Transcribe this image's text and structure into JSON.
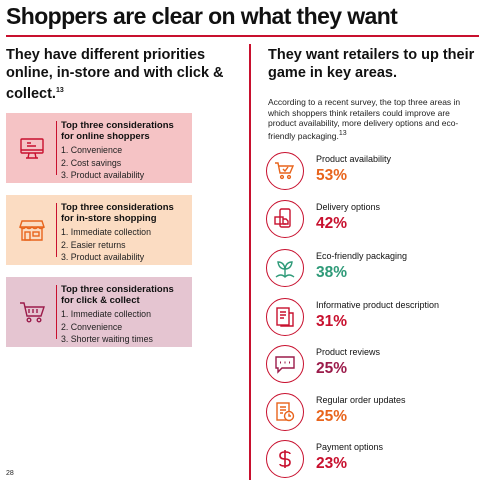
{
  "page": {
    "title": "Shoppers are clear on what they want",
    "page_number": "28"
  },
  "left": {
    "heading": "They have different priorities online, in-store and with click & collect.",
    "heading_ref": "13",
    "boxes": [
      {
        "icon": "monitor-icon",
        "title": "Top three considerations for online shoppers",
        "items": [
          "1. Convenience",
          "2. Cost savings",
          "3. Product availability"
        ],
        "bg": "#f5c3c5"
      },
      {
        "icon": "storefront-icon",
        "title": "Top three considerations for in-store shopping",
        "items": [
          "1. Immediate collection",
          "2. Easier returns",
          "3. Product availability"
        ],
        "bg": "#fbdcc2"
      },
      {
        "icon": "shopping-cart-icon",
        "title": "Top three considerations for click & collect",
        "items": [
          "1. Immediate collection",
          "2. Convenience",
          "3. Shorter waiting times"
        ],
        "bg": "#e5c5d1"
      }
    ]
  },
  "right": {
    "heading": "They want retailers to up their game in key areas.",
    "intro": "According to a recent survey, the top three areas in which shoppers think retailers could improve are product availability, more delivery options and eco-friendly packaging.",
    "intro_ref": "13",
    "stats": [
      {
        "label": "Product availability",
        "value": "53%",
        "color": "#e8641c",
        "icon": "cart-check-icon"
      },
      {
        "label": "Delivery options",
        "value": "42%",
        "color": "#c8102e",
        "icon": "delivery-phone-icon"
      },
      {
        "label": "Eco-friendly packaging",
        "value": "38%",
        "color": "#2e9a78",
        "icon": "leaves-icon"
      },
      {
        "label": "Informative product description",
        "value": "31%",
        "color": "#c8102e",
        "icon": "document-icon"
      },
      {
        "label": "Product reviews",
        "value": "25%",
        "color": "#9b1b4a",
        "icon": "chat-stars-icon"
      },
      {
        "label": "Regular order updates",
        "value": "25%",
        "color": "#e8641c",
        "icon": "order-clock-icon"
      },
      {
        "label": "Payment options",
        "value": "23%",
        "color": "#c8102e",
        "icon": "dollar-icon"
      }
    ]
  },
  "colors": {
    "accent": "#c8102e",
    "orange": "#e8641c",
    "green": "#2e9a78",
    "plum": "#9b1b4a"
  }
}
